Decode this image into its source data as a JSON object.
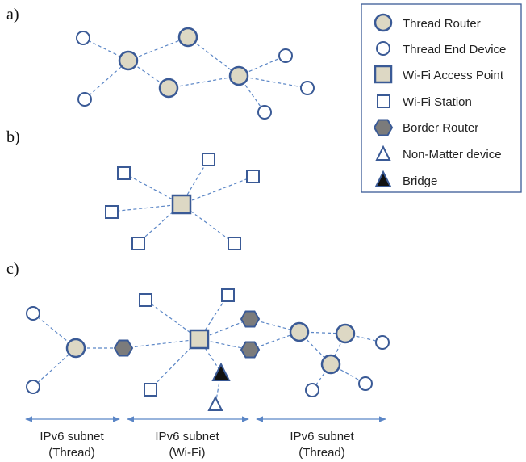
{
  "colors": {
    "edge": "#5b86c6",
    "node_stroke": "#3a5a96",
    "router_fill": "#ddd8c4",
    "border_fill": "#7b7b7b",
    "bridge_fill": "#111111",
    "white": "#ffffff"
  },
  "panels": {
    "a": "a)",
    "b": "b)",
    "c": "c)"
  },
  "legend": {
    "items": [
      {
        "icon": "thread-router-icon",
        "label": "Thread Router"
      },
      {
        "icon": "thread-end-device-icon",
        "label": "Thread End Device"
      },
      {
        "icon": "wifi-access-point-icon",
        "label": "Wi-Fi Access Point"
      },
      {
        "icon": "wifi-station-icon",
        "label": "Wi-Fi Station"
      },
      {
        "icon": "border-router-icon",
        "label": "Border Router"
      },
      {
        "icon": "non-matter-device-icon",
        "label": "Non-Matter device"
      },
      {
        "icon": "bridge-icon",
        "label": "Bridge"
      }
    ]
  },
  "subnets": [
    {
      "line1": "IPv6 subnet",
      "line2": "(Thread)"
    },
    {
      "line1": "IPv6 subnet",
      "line2": "(Wi-Fi)"
    },
    {
      "line1": "IPv6 subnet",
      "line2": "(Thread)"
    }
  ]
}
